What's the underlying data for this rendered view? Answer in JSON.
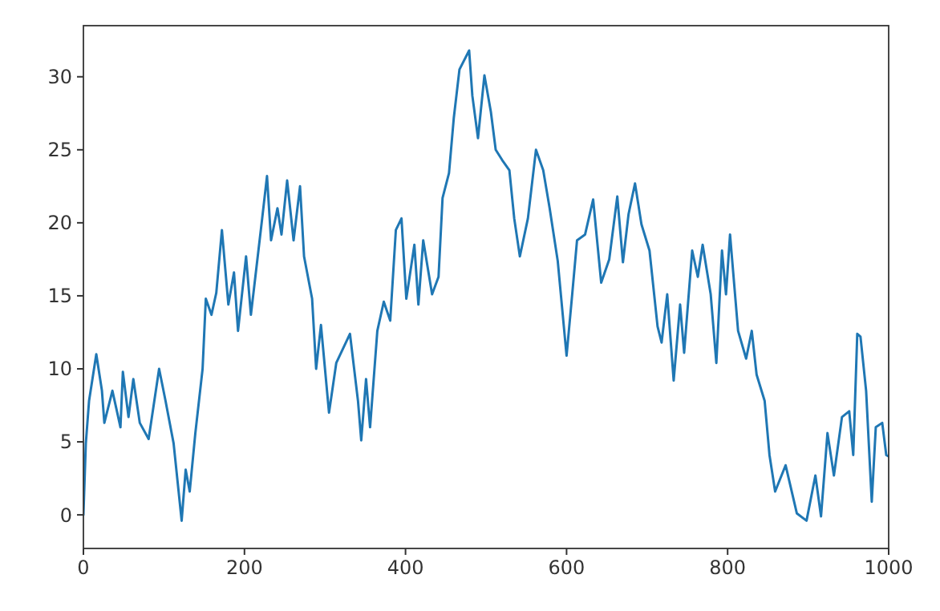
{
  "chart_data": {
    "type": "line",
    "xlim": [
      0,
      1000
    ],
    "ylim": [
      -2.3,
      33.5
    ],
    "xticks": [
      0,
      200,
      400,
      600,
      800,
      1000
    ],
    "yticks": [
      0,
      5,
      10,
      15,
      20,
      25,
      30
    ],
    "marker": "none",
    "line_style": "solid",
    "series": [
      {
        "color": "#1f77b4",
        "x": [
          0,
          3,
          7,
          16,
          23,
          26,
          36,
          46,
          49,
          56,
          62,
          70,
          81,
          94,
          102,
          112,
          122,
          127,
          132,
          139,
          148,
          152,
          159,
          165,
          172,
          180,
          187,
          192,
          202,
          208,
          215,
          222,
          228,
          233,
          241,
          246,
          253,
          261,
          269,
          274,
          284,
          289,
          295,
          305,
          314,
          331,
          341,
          345,
          351,
          356,
          365,
          373,
          381,
          388,
          395,
          401,
          411,
          416,
          422,
          433,
          441,
          446,
          454,
          460,
          467,
          479,
          483,
          490,
          498,
          506,
          512,
          520,
          529,
          535,
          542,
          552,
          562,
          571,
          579,
          589,
          600,
          607,
          613,
          623,
          633,
          643,
          653,
          663,
          670,
          677,
          685,
          693,
          703,
          713,
          718,
          725,
          733,
          741,
          746,
          756,
          763,
          769,
          779,
          786,
          793,
          798,
          803,
          813,
          823,
          830,
          836,
          846,
          852,
          859,
          872,
          886,
          898,
          909,
          916,
          924,
          932,
          942,
          951,
          956,
          961,
          965,
          972,
          979,
          984,
          992,
          997,
          1000
        ],
        "values": [
          0,
          4.9,
          7.8,
          11,
          8.5,
          6.3,
          8.5,
          6,
          9.8,
          6.7,
          9.3,
          6.3,
          5.2,
          10,
          7.8,
          4.9,
          -0.4,
          3.1,
          1.6,
          5.6,
          10,
          14.8,
          13.7,
          15.2,
          19.5,
          14.4,
          16.6,
          12.6,
          17.7,
          13.7,
          17,
          20.3,
          23.2,
          18.8,
          21,
          19.2,
          22.9,
          18.8,
          22.5,
          17.7,
          14.8,
          10,
          13,
          7,
          10.4,
          12.4,
          7.8,
          5.1,
          9.3,
          6,
          12.6,
          14.6,
          13.3,
          19.5,
          20.3,
          14.8,
          18.5,
          14.4,
          18.8,
          15.1,
          16.3,
          21.7,
          23.4,
          27.2,
          30.5,
          31.8,
          28.7,
          25.8,
          30.1,
          27.6,
          25,
          24.3,
          23.6,
          20.3,
          17.7,
          20.3,
          25,
          23.6,
          21,
          17.4,
          10.9,
          15.1,
          18.8,
          19.2,
          21.6,
          15.9,
          17.5,
          21.8,
          17.3,
          20.6,
          22.7,
          19.9,
          18.1,
          12.9,
          11.8,
          15.1,
          9.2,
          14.4,
          11.1,
          18.1,
          16.3,
          18.5,
          15.1,
          10.4,
          18.1,
          15.1,
          19.2,
          12.6,
          10.7,
          12.6,
          9.6,
          7.8,
          4.1,
          1.6,
          3.4,
          0.1,
          -0.4,
          2.7,
          -0.1,
          5.6,
          2.7,
          6.7,
          7.1,
          4.1,
          12.4,
          12.2,
          8.5,
          0.9,
          6,
          6.3,
          4.1,
          4
        ]
      }
    ]
  }
}
